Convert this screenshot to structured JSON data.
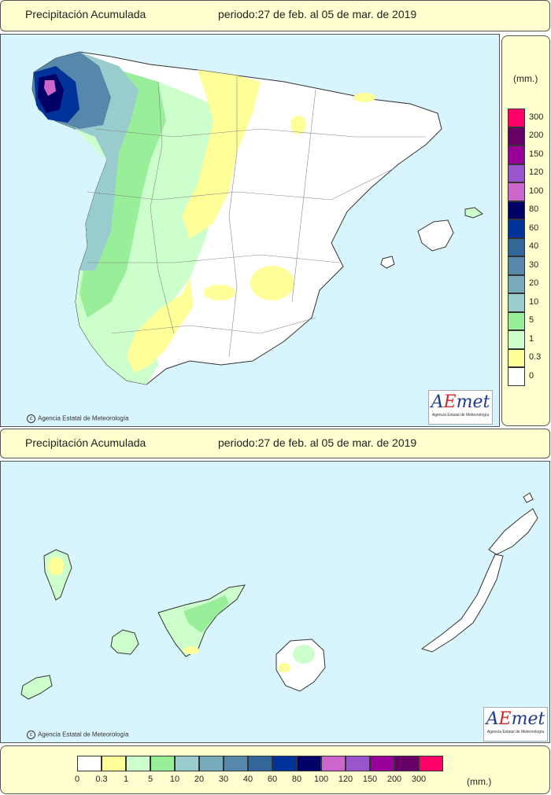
{
  "top_panel": {
    "title": "Precipitación Acumulada",
    "period": "periodo:27 de feb. al 05 de mar. de 2019",
    "credit": "Agencia Estatal de Meteorología",
    "logo_text": "AEmet",
    "logo_sub": "Agencia Estatal de Meteorología"
  },
  "bottom_panel": {
    "title": "Precipitación Acumulada",
    "period": "periodo:27 de feb. al 05 de mar. de 2019",
    "credit": "Agencia Estatal de Meteorología",
    "logo_text": "AEmet",
    "logo_sub": "Agencia Estatal de Meteorología"
  },
  "legend": {
    "unit": "(mm.)",
    "classes": [
      {
        "label": "0",
        "color": "#ffffff"
      },
      {
        "label": "0.3",
        "color": "#ffff99"
      },
      {
        "label": "1",
        "color": "#ccffcc"
      },
      {
        "label": "5",
        "color": "#99ee99"
      },
      {
        "label": "10",
        "color": "#99cccc"
      },
      {
        "label": "20",
        "color": "#77aabb"
      },
      {
        "label": "30",
        "color": "#5588aa"
      },
      {
        "label": "40",
        "color": "#336699"
      },
      {
        "label": "60",
        "color": "#003399"
      },
      {
        "label": "80",
        "color": "#000066"
      },
      {
        "label": "100",
        "color": "#cc66cc"
      },
      {
        "label": "120",
        "color": "#9955cc"
      },
      {
        "label": "150",
        "color": "#990099"
      },
      {
        "label": "200",
        "color": "#660066"
      },
      {
        "label": "300",
        "color": "#ff0066"
      }
    ]
  },
  "map_colors": {
    "sea": "#d8f4fc",
    "border": "#888888"
  }
}
